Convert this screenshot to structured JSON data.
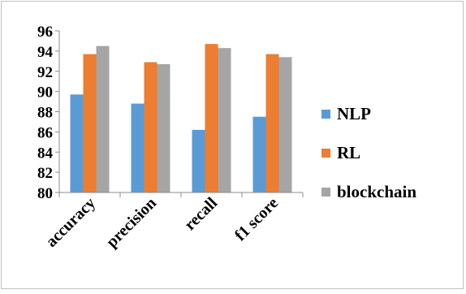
{
  "chart_data": {
    "type": "bar",
    "categories": [
      "accuracy",
      "precision",
      "recall",
      "f1 score"
    ],
    "series": [
      {
        "name": "NLP",
        "values": [
          89.7,
          88.8,
          86.2,
          87.5
        ],
        "color": "#5b9bd5"
      },
      {
        "name": "RL",
        "values": [
          93.7,
          92.9,
          94.7,
          93.7
        ],
        "color": "#ed7d31"
      },
      {
        "name": "blockchain",
        "values": [
          94.5,
          92.7,
          94.3,
          93.4
        ],
        "color": "#a5a5a5"
      }
    ],
    "ylim": [
      80,
      96
    ],
    "yticks": [
      "80",
      "82",
      "84",
      "86",
      "88",
      "90",
      "92",
      "94",
      "96"
    ],
    "grid": false,
    "legend": "right"
  }
}
